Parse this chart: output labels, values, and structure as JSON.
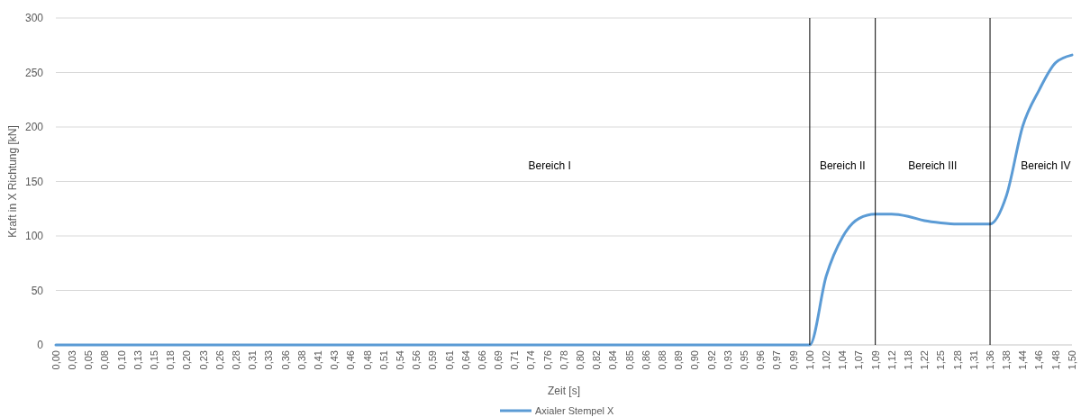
{
  "chart_data": {
    "type": "line",
    "xlabel": "Zeit [s]",
    "ylabel": "Kraft in X Richtung [kN]",
    "categories": [
      "0,00",
      "0,03",
      "0,05",
      "0,08",
      "0,10",
      "0,13",
      "0,15",
      "0,18",
      "0,20",
      "0,23",
      "0,26",
      "0,28",
      "0,31",
      "0,33",
      "0,36",
      "0,38",
      "0,41",
      "0,43",
      "0,46",
      "0,48",
      "0,51",
      "0,54",
      "0,56",
      "0,59",
      "0,61",
      "0,64",
      "0,66",
      "0,69",
      "0,71",
      "0,74",
      "0,76",
      "0,78",
      "0,80",
      "0,82",
      "0,84",
      "0,85",
      "0,86",
      "0,88",
      "0,89",
      "0,90",
      "0,92",
      "0,93",
      "0,95",
      "0,96",
      "0,97",
      "0,99",
      "1,00",
      "1,02",
      "1,04",
      "1,07",
      "1,09",
      "1,12",
      "1,18",
      "1,22",
      "1,25",
      "1,28",
      "1,31",
      "1,36",
      "1,38",
      "1,44",
      "1,46",
      "1,48",
      "1,50"
    ],
    "series": [
      {
        "name": "Axialer Stempel X",
        "color": "#5b9bd5",
        "values": [
          0,
          0,
          0,
          0,
          0,
          0,
          0,
          0,
          0,
          0,
          0,
          0,
          0,
          0,
          0,
          0,
          0,
          0,
          0,
          0,
          0,
          0,
          0,
          0,
          0,
          0,
          0,
          0,
          0,
          0,
          0,
          0,
          0,
          0,
          0,
          0,
          0,
          0,
          0,
          0,
          0,
          0,
          0,
          0,
          0,
          0,
          0,
          63,
          99,
          116,
          120,
          120,
          118,
          114,
          112,
          111,
          111,
          111,
          137,
          201,
          234,
          259,
          266
        ]
      }
    ],
    "ylim": [
      0,
      300
    ],
    "yticks": [
      0,
      50,
      100,
      150,
      200,
      250,
      300
    ],
    "grid": "y",
    "legend": "bottom",
    "marker": "none",
    "line_style": "solid",
    "ref_lines": [
      {
        "axis": "x",
        "value": "1,00",
        "color": "#000000"
      },
      {
        "axis": "x",
        "value": "1,09",
        "color": "#000000"
      },
      {
        "axis": "x",
        "value": "1,36",
        "color": "#000000"
      }
    ],
    "annotations": [
      "Bereich I",
      "Bereich II",
      "Bereich III",
      "Bereich IV"
    ]
  }
}
